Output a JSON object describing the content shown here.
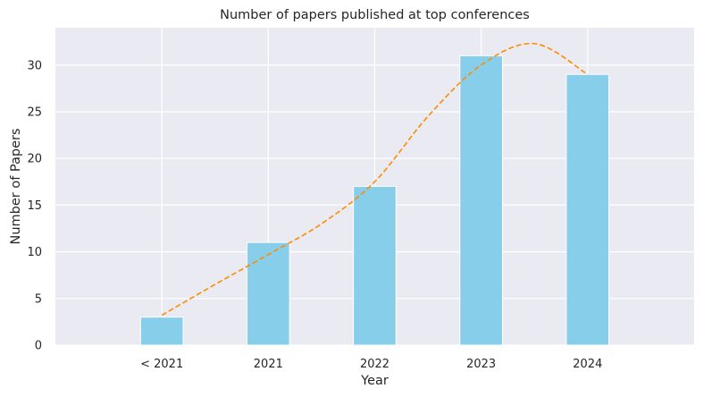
{
  "chart_data": {
    "type": "bar",
    "title": "Number of papers published at top conferences",
    "xlabel": "Year",
    "ylabel": "Number of Papers",
    "categories": [
      "< 2021",
      "2021",
      "2022",
      "2023",
      "2024"
    ],
    "values": [
      3,
      11,
      17,
      31,
      29
    ],
    "trend_line": {
      "style": "dashed",
      "points": [
        [
          0,
          3.2
        ],
        [
          0.5,
          6.5
        ],
        [
          1,
          9.7
        ],
        [
          1.5,
          13.0
        ],
        [
          2,
          17.5
        ],
        [
          2.5,
          24.5
        ],
        [
          3,
          30.0
        ],
        [
          3.5,
          32.3
        ],
        [
          4,
          29.0
        ]
      ]
    },
    "yticks": [
      0,
      5,
      10,
      15,
      20,
      25,
      30
    ],
    "ylim": [
      0,
      34
    ],
    "xlim": [
      -1,
      5
    ],
    "grid": true,
    "colors": {
      "bar": "#87CEEB",
      "trend": "#FF8C00",
      "plot_background": "#EAEAF2",
      "grid": "#FFFFFF"
    }
  }
}
